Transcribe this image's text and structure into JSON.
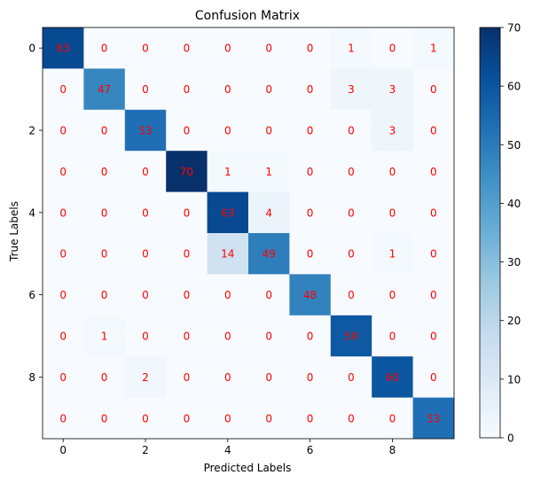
{
  "chart_data": {
    "type": "heatmap",
    "title": "Confusion Matrix",
    "xlabel": "Predicted Labels",
    "ylabel": "True Labels",
    "x_ticks": [
      "0",
      "2",
      "4",
      "6",
      "8"
    ],
    "y_ticks": [
      "0",
      "2",
      "4",
      "6",
      "8"
    ],
    "colorbar_ticks": [
      "0",
      "10",
      "20",
      "30",
      "40",
      "50",
      "60",
      "70"
    ],
    "colorbar_range": [
      0,
      70
    ],
    "colormap": "Blues",
    "annotation_color": "#ff0000",
    "matrix": [
      [
        63,
        0,
        0,
        0,
        0,
        0,
        0,
        1,
        0,
        1
      ],
      [
        0,
        47,
        0,
        0,
        0,
        0,
        0,
        3,
        3,
        0
      ],
      [
        0,
        0,
        53,
        0,
        0,
        0,
        0,
        0,
        3,
        0
      ],
      [
        0,
        0,
        0,
        70,
        1,
        1,
        0,
        0,
        0,
        0
      ],
      [
        0,
        0,
        0,
        0,
        63,
        4,
        0,
        0,
        0,
        0
      ],
      [
        0,
        0,
        0,
        0,
        14,
        49,
        0,
        0,
        1,
        0
      ],
      [
        0,
        0,
        0,
        0,
        0,
        0,
        48,
        0,
        0,
        0
      ],
      [
        0,
        1,
        0,
        0,
        0,
        0,
        0,
        59,
        0,
        0
      ],
      [
        0,
        0,
        2,
        0,
        0,
        0,
        0,
        0,
        60,
        0
      ],
      [
        0,
        0,
        0,
        0,
        0,
        0,
        0,
        0,
        0,
        53
      ]
    ]
  }
}
